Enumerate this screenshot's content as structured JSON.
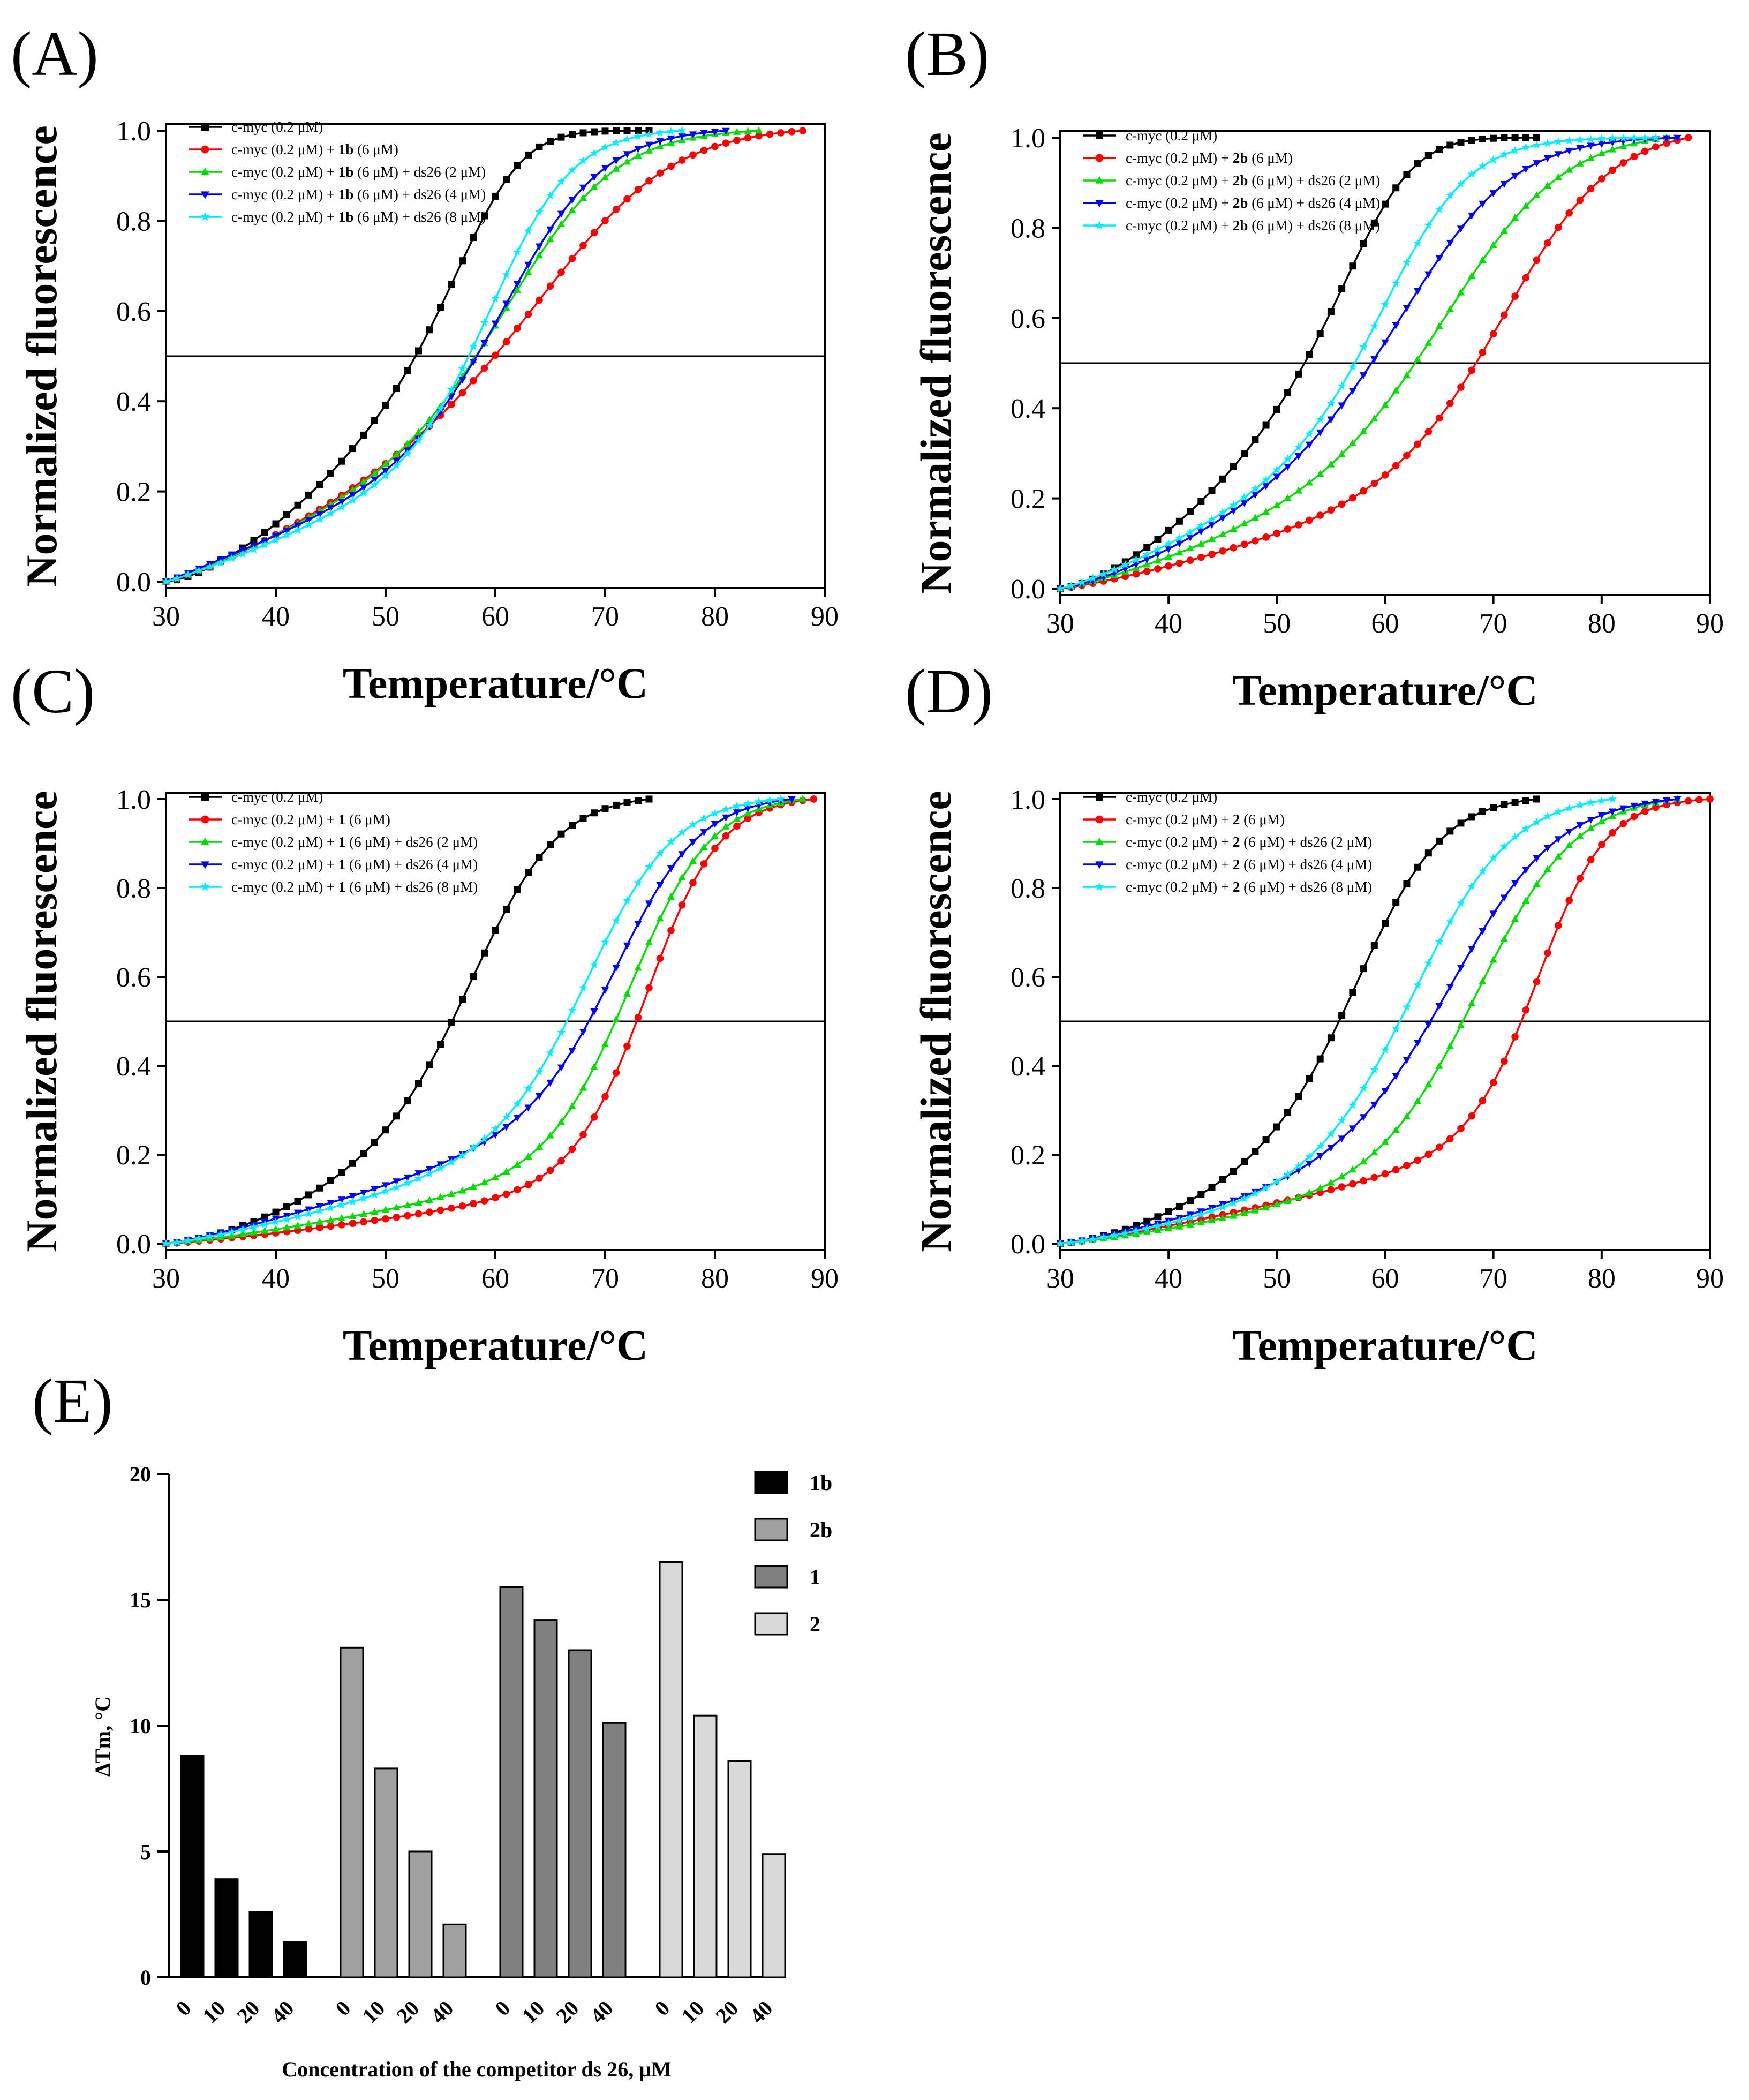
{
  "figure": {
    "description_free": true,
    "colors": {
      "black": "#000000",
      "red": "#ff0000",
      "green": "#00dd00",
      "blue": "#0000ff",
      "cyan": "#00eeff"
    }
  },
  "chart_data": [
    {
      "id": "A",
      "panel_label": "(A)",
      "type": "line",
      "xlabel": "Temperature/°C",
      "ylabel": "Normalized fluorescence",
      "xlim": [
        30,
        90
      ],
      "ylim": [
        0,
        1.0
      ],
      "x_ticks": [
        "30",
        "40",
        "50",
        "60",
        "70",
        "80",
        "90"
      ],
      "y_ticks": [
        "0.0",
        "0.2",
        "0.4",
        "0.6",
        "0.8",
        "1.0"
      ],
      "reference_line_y": 0.5,
      "legend_position": "top-left",
      "series": [
        {
          "name": "c-myc (0.2 μM)",
          "label_parts": [
            "c-myc (0.2 μM)"
          ],
          "color": "#000000",
          "marker": "square",
          "tm": 59,
          "xstart": 30,
          "xend": 74,
          "base_slope": 0.004,
          "base_power": 1.5,
          "k": 0.32
        },
        {
          "name": "c-myc (0.2 μM) + 1b (6 μM)",
          "label_parts": [
            "c-myc (0.2 μM) + ",
            "1b",
            " (6 μM)"
          ],
          "color": "#ff0000",
          "marker": "circle",
          "tm": 67.8,
          "xstart": 30,
          "xend": 88,
          "base_slope": 0.006,
          "base_power": 1.2,
          "k": 0.16
        },
        {
          "name": "c-myc (0.2 μM) + 1b (6 μM) + ds26 (2 μM)",
          "label_parts": [
            "c-myc (0.2 μM) + ",
            "1b",
            " (6 μM) + ds26 (2 μM)"
          ],
          "color": "#00dd00",
          "marker": "triangle-up",
          "tm": 62.8,
          "xstart": 30,
          "xend": 84,
          "base_slope": 0.0075,
          "base_power": 1.1,
          "k": 0.2
        },
        {
          "name": "c-myc (0.2 μM) + 1b (6 μM) + ds26 (4 μM)",
          "label_parts": [
            "c-myc (0.2 μM) + ",
            "1b",
            " (6 μM) + ds26 (4 μM)"
          ],
          "color": "#0000ff",
          "marker": "triangle-down",
          "tm": 61.9,
          "xstart": 30,
          "xend": 81,
          "base_slope": 0.0095,
          "base_power": 1.0,
          "k": 0.22
        },
        {
          "name": "c-myc (0.2 μM) + 1b (6 μM) + ds26 (8 μM)",
          "label_parts": [
            "c-myc (0.2 μM) + ",
            "1b",
            " (6 μM) + ds26 (8 μM)"
          ],
          "color": "#00eeff",
          "marker": "star",
          "tm": 60.5,
          "xstart": 30,
          "xend": 77,
          "base_slope": 0.007,
          "base_power": 1.1,
          "k": 0.27
        }
      ]
    },
    {
      "id": "B",
      "panel_label": "(B)",
      "type": "line",
      "xlabel": "Temperature/°C",
      "ylabel": "Normalized fluorescence",
      "xlim": [
        30,
        90
      ],
      "ylim": [
        0,
        1.0
      ],
      "x_ticks": [
        "30",
        "40",
        "50",
        "60",
        "70",
        "80",
        "90"
      ],
      "y_ticks": [
        "0.0",
        "0.2",
        "0.4",
        "0.6",
        "0.8",
        "1.0"
      ],
      "reference_line_y": 0.5,
      "legend_position": "top-left",
      "series": [
        {
          "name": "c-myc (0.2 μM)",
          "label_parts": [
            "c-myc (0.2 μM)"
          ],
          "color": "#000000",
          "marker": "square",
          "tm": 59,
          "xstart": 30,
          "xend": 74,
          "base_slope": 0.004,
          "base_power": 1.5,
          "k": 0.3
        },
        {
          "name": "c-myc (0.2 μM) + 2b (6 μM)",
          "label_parts": [
            "c-myc (0.2 μM) + ",
            "2b",
            " (6 μM)"
          ],
          "color": "#ff0000",
          "marker": "circle",
          "tm": 72,
          "xstart": 30,
          "xend": 88,
          "base_slope": 0.003,
          "base_power": 1.2,
          "k": 0.2
        },
        {
          "name": "c-myc (0.2 μM) + 2b (6 μM) + ds26 (2 μM)",
          "label_parts": [
            "c-myc (0.2 μM) + ",
            "2b",
            " (6 μM) + ds26 (2 μM)"
          ],
          "color": "#00dd00",
          "marker": "triangle-up",
          "tm": 67.2,
          "xstart": 30,
          "xend": 86,
          "base_slope": 0.004,
          "base_power": 1.2,
          "k": 0.18
        },
        {
          "name": "c-myc (0.2 μM) + 2b (6 μM) + ds26 (4 μM)",
          "label_parts": [
            "c-myc (0.2 μM) + ",
            "2b",
            " (6 μM) + ds26 (4 μM)"
          ],
          "color": "#0000ff",
          "marker": "triangle-down",
          "tm": 64,
          "xstart": 30,
          "xend": 87,
          "base_slope": 0.004,
          "base_power": 1.3,
          "k": 0.19
        },
        {
          "name": "c-myc (0.2 μM) + 2b (6 μM) + ds26 (8 μM)",
          "label_parts": [
            "c-myc (0.2 μM) + ",
            "2b",
            " (6 μM) + ds26 (8 μM)"
          ],
          "color": "#00eeff",
          "marker": "star",
          "tm": 61.2,
          "xstart": 30,
          "xend": 85,
          "base_slope": 0.006,
          "base_power": 1.2,
          "k": 0.25
        }
      ]
    },
    {
      "id": "C",
      "panel_label": "(C)",
      "type": "line",
      "xlabel": "Temperature/°C",
      "ylabel": "Normalized fluorescence",
      "xlim": [
        30,
        90
      ],
      "ylim": [
        0,
        1.0
      ],
      "x_ticks": [
        "30",
        "40",
        "50",
        "60",
        "70",
        "80",
        "90"
      ],
      "y_ticks": [
        "0.0",
        "0.2",
        "0.4",
        "0.6",
        "0.8",
        "1.0"
      ],
      "reference_line_y": 0.5,
      "legend_position": "top-left",
      "series": [
        {
          "name": "c-myc (0.2 μM)",
          "label_parts": [
            "c-myc (0.2 μM)"
          ],
          "color": "#000000",
          "marker": "square",
          "tm": 59.2,
          "xstart": 30,
          "xend": 74,
          "base_slope": 0.002,
          "base_power": 1.5,
          "k": 0.25
        },
        {
          "name": "c-myc (0.2 μM) + 1 (6 μM)",
          "label_parts": [
            "c-myc (0.2 μM) + ",
            "1",
            " (6 μM)"
          ],
          "color": "#ff0000",
          "marker": "circle",
          "tm": 74,
          "xstart": 30,
          "xend": 89,
          "base_slope": 0.0015,
          "base_power": 1.2,
          "k": 0.3
        },
        {
          "name": "c-myc (0.2 μM) + 1 (6 μM) + ds26 (2 μM)",
          "label_parts": [
            "c-myc (0.2 μM) + ",
            "1",
            " (6 μM) + ds26 (2 μM)"
          ],
          "color": "#00dd00",
          "marker": "triangle-up",
          "tm": 72.6,
          "xstart": 30,
          "xend": 88,
          "base_slope": 0.002,
          "base_power": 1.2,
          "k": 0.27
        },
        {
          "name": "c-myc (0.2 μM) + 1 (6 μM) + ds26 (4 μM)",
          "label_parts": [
            "c-myc (0.2 μM) + ",
            "1",
            " (6 μM) + ds26 (4 μM)"
          ],
          "color": "#0000ff",
          "marker": "triangle-down",
          "tm": 71.8,
          "xstart": 30,
          "xend": 87,
          "base_slope": 0.0035,
          "base_power": 1.2,
          "k": 0.26
        },
        {
          "name": "c-myc (0.2 μM) + 1 (6 μM) + ds26 (8 μM)",
          "label_parts": [
            "c-myc (0.2 μM) + ",
            "1",
            " (6 μM) + ds26 (8 μM)"
          ],
          "color": "#00eeff",
          "marker": "star",
          "tm": 69,
          "xstart": 30,
          "xend": 86,
          "base_slope": 0.003,
          "base_power": 1.2,
          "k": 0.25
        }
      ]
    },
    {
      "id": "D",
      "panel_label": "(D)",
      "type": "line",
      "xlabel": "Temperature/°C",
      "ylabel": "Normalized fluorescence",
      "xlim": [
        30,
        90
      ],
      "ylim": [
        0,
        1.0
      ],
      "x_ticks": [
        "30",
        "40",
        "50",
        "60",
        "70",
        "80",
        "90"
      ],
      "y_ticks": [
        "0.0",
        "0.2",
        "0.4",
        "0.6",
        "0.8",
        "1.0"
      ],
      "reference_line_y": 0.5,
      "legend_position": "top-left",
      "series": [
        {
          "name": "c-myc (0.2 μM)",
          "label_parts": [
            "c-myc (0.2 μM)"
          ],
          "color": "#000000",
          "marker": "square",
          "tm": 58.8,
          "xstart": 30,
          "xend": 74,
          "base_slope": 0.002,
          "base_power": 1.5,
          "k": 0.25
        },
        {
          "name": "c-myc (0.2 μM) + 2 (6 μM)",
          "label_parts": [
            "c-myc (0.2 μM) + ",
            "2",
            " (6 μM)"
          ],
          "color": "#ff0000",
          "marker": "circle",
          "tm": 74.5,
          "xstart": 30,
          "xend": 90,
          "base_slope": 0.0025,
          "base_power": 1.2,
          "k": 0.32
        },
        {
          "name": "c-myc (0.2 μM) + 2 (6 μM) + ds26 (2 μM)",
          "label_parts": [
            "c-myc (0.2 μM) + ",
            "2",
            " (6 μM) + ds26 (2 μM)"
          ],
          "color": "#00dd00",
          "marker": "triangle-up",
          "tm": 69,
          "xstart": 30,
          "xend": 87,
          "base_slope": 0.002,
          "base_power": 1.2,
          "k": 0.22
        },
        {
          "name": "c-myc (0.2 μM) + 2 (6 μM) + ds26 (4 μM)",
          "label_parts": [
            "c-myc (0.2 μM) + ",
            "2",
            " (6 μM) + ds26 (4 μM)"
          ],
          "color": "#0000ff",
          "marker": "triangle-down",
          "tm": 67,
          "xstart": 30,
          "xend": 87,
          "base_slope": 0.003,
          "base_power": 1.2,
          "k": 0.2
        },
        {
          "name": "c-myc (0.2 μM) + 2 (6 μM) + ds26 (8 μM)",
          "label_parts": [
            "c-myc (0.2 μM) + ",
            "2",
            " (6 μM) + ds26 (8 μM)"
          ],
          "color": "#00eeff",
          "marker": "star",
          "tm": 63.2,
          "xstart": 30,
          "xend": 81,
          "base_slope": 0.0025,
          "base_power": 1.2,
          "k": 0.22
        }
      ]
    },
    {
      "id": "E",
      "panel_label": "(E)",
      "type": "bar",
      "ylabel": "ΔTm, °C",
      "xlabel": "Concentration of the competitor ds 26, μM",
      "ylim": [
        0,
        20
      ],
      "y_ticks": [
        "0",
        "5",
        "10",
        "15",
        "20"
      ],
      "categories": [
        "0",
        "10",
        "20",
        "40"
      ],
      "legend_position": "top-right",
      "series": [
        {
          "name": "1b",
          "color": "#000000",
          "values": [
            8.8,
            3.9,
            2.6,
            1.4
          ]
        },
        {
          "name": "2b",
          "color": "#a0a0a0",
          "values": [
            13.1,
            8.3,
            5.0,
            2.1
          ]
        },
        {
          "name": "1",
          "color": "#808080",
          "values": [
            15.5,
            14.2,
            13.0,
            10.1
          ]
        },
        {
          "name": "2",
          "color": "#d8d8d8",
          "values": [
            16.5,
            10.4,
            8.6,
            4.9
          ]
        }
      ]
    }
  ]
}
